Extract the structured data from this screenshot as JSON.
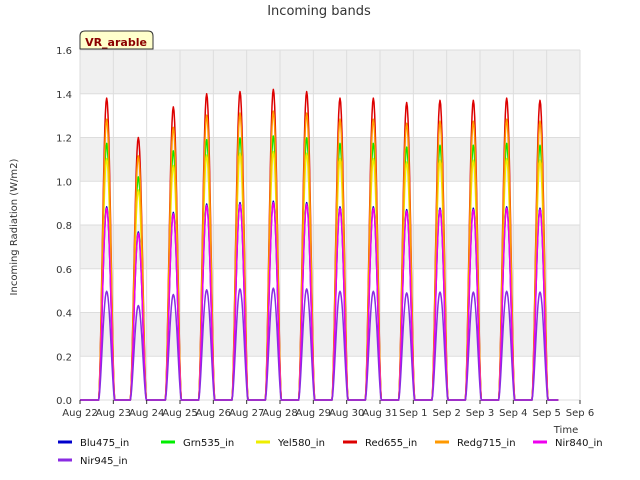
{
  "chart_data": {
    "type": "line",
    "title": "Incoming bands",
    "xlabel": "Time",
    "ylabel": "Incoming Radiation (W/m2)",
    "site_label": "VR_arable",
    "ylim": [
      0,
      1.6
    ],
    "yticks": [
      "0.0",
      "0.2",
      "0.4",
      "0.6",
      "0.8",
      "1.0",
      "1.2",
      "1.4",
      "1.6"
    ],
    "xlim": [
      0,
      15
    ],
    "xticks": [
      "Aug 22",
      "Aug 23",
      "Aug 24",
      "Aug 25",
      "Aug 26",
      "Aug 27",
      "Aug 28",
      "Aug 29",
      "Aug 30",
      "Aug 31",
      "Sep 1",
      "Sep 2",
      "Sep 3",
      "Sep 4",
      "Sep 5",
      "Sep 6"
    ],
    "grid": true,
    "legend_position": "bottom",
    "day_peaks": [
      {
        "day": "Aug 23",
        "x": 0.8,
        "peak": 1.38
      },
      {
        "day": "Aug 24",
        "x": 1.75,
        "peak": 1.2
      },
      {
        "day": "Aug 25",
        "x": 2.8,
        "peak": 1.34
      },
      {
        "day": "Aug 26",
        "x": 3.8,
        "peak": 1.4
      },
      {
        "day": "Aug 27",
        "x": 4.8,
        "peak": 1.41
      },
      {
        "day": "Aug 28",
        "x": 5.8,
        "peak": 1.42
      },
      {
        "day": "Aug 29",
        "x": 6.8,
        "peak": 1.41
      },
      {
        "day": "Aug 30",
        "x": 7.8,
        "peak": 1.38
      },
      {
        "day": "Aug 31",
        "x": 8.8,
        "peak": 1.38
      },
      {
        "day": "Sep 1",
        "x": 9.8,
        "peak": 1.36
      },
      {
        "day": "Sep 2",
        "x": 10.8,
        "peak": 1.37
      },
      {
        "day": "Sep 3",
        "x": 11.8,
        "peak": 1.37
      },
      {
        "day": "Sep 4",
        "x": 12.8,
        "peak": 1.38
      },
      {
        "day": "Sep 5",
        "x": 13.8,
        "peak": 1.37
      }
    ],
    "series": [
      {
        "name": "Blu475_in",
        "color": "#0000cc",
        "ratio": 0.64
      },
      {
        "name": "Grn535_in",
        "color": "#00ee00",
        "ratio": 0.85
      },
      {
        "name": "Yel580_in",
        "color": "#eeee00",
        "ratio": 0.8
      },
      {
        "name": "Red655_in",
        "color": "#dd0000",
        "ratio": 1.0
      },
      {
        "name": "Redg715_in",
        "color": "#ff9900",
        "ratio": 0.93
      },
      {
        "name": "Nir840_in",
        "color": "#ee00ee",
        "ratio": 0.635
      },
      {
        "name": "Nir945_in",
        "color": "#8a2be2",
        "ratio": 0.36
      }
    ]
  }
}
